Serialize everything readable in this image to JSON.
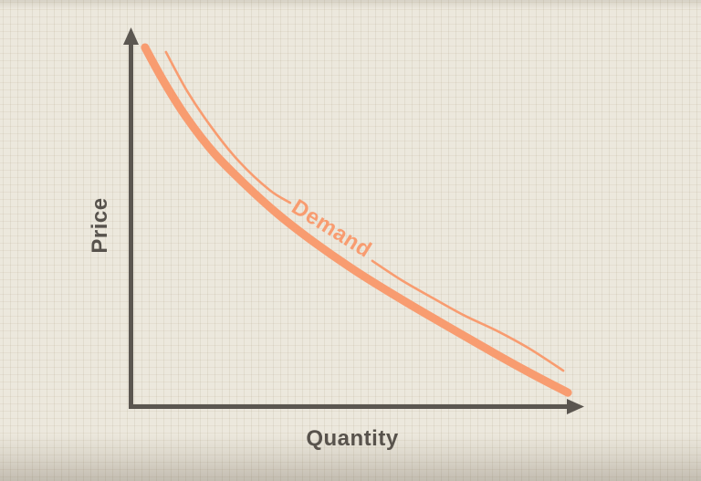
{
  "colors": {
    "background": "#ece8dd",
    "grid_line": "rgba(153,138,105,0.12)",
    "axis": "#5b5650",
    "label_text": "#57524c",
    "accent": "#f89c70"
  },
  "chart_data": {
    "type": "line",
    "title": "",
    "xlabel": "Quantity",
    "ylabel": "Price",
    "axes_numeric": false,
    "grid": true,
    "xlim": [
      0,
      1
    ],
    "ylim": [
      0,
      1
    ],
    "legend_position": "label-on-curve",
    "series": [
      {
        "name": "Demand (main stroke)",
        "role": "main",
        "stroke_width": 9,
        "x": [
          0.032,
          0.074,
          0.125,
          0.185,
          0.252,
          0.326,
          0.406,
          0.497,
          0.594,
          0.694,
          0.799,
          0.879,
          0.964
        ],
        "y": [
          0.947,
          0.856,
          0.76,
          0.668,
          0.587,
          0.507,
          0.433,
          0.358,
          0.286,
          0.216,
          0.144,
          0.091,
          0.038
        ]
      },
      {
        "name": "Demand (sketch overstroke, left of label)",
        "role": "sketch",
        "stroke_width": 2.6,
        "x": [
          0.078,
          0.125,
          0.179,
          0.239,
          0.306,
          0.352
        ],
        "y": [
          0.935,
          0.832,
          0.736,
          0.647,
          0.572,
          0.538
        ]
      },
      {
        "name": "Demand (sketch overstroke, right of label)",
        "role": "sketch",
        "stroke_width": 2.6,
        "x": [
          0.533,
          0.598,
          0.668,
          0.738,
          0.809,
          0.879,
          0.954
        ],
        "y": [
          0.385,
          0.334,
          0.286,
          0.24,
          0.2,
          0.154,
          0.096
        ]
      }
    ],
    "annotations": [
      {
        "text": "Demand",
        "x": 0.443,
        "y": 0.469,
        "angle_deg": 32,
        "color": "#f89c70"
      }
    ]
  }
}
